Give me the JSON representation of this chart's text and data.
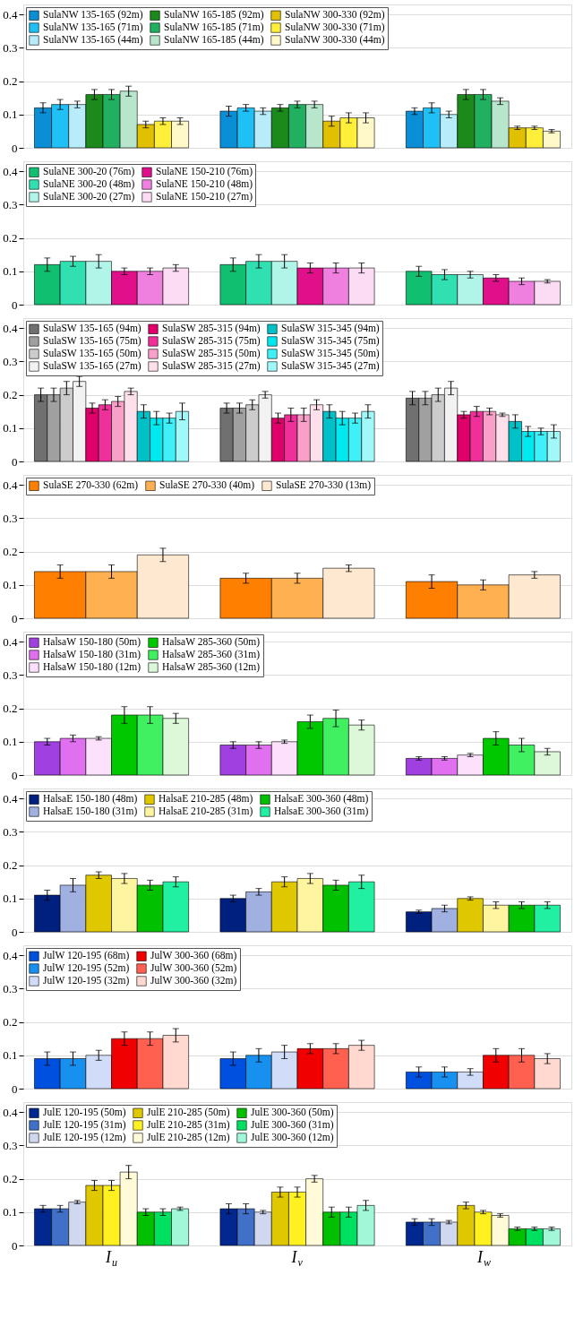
{
  "chart_data": [
    {
      "type": "bar",
      "categories": [
        null,
        null,
        null
      ],
      "ylim": [
        0,
        0.43
      ],
      "yticks": [
        0,
        0.1,
        0.2,
        0.3,
        0.4
      ],
      "grid": "y",
      "legend": "top left",
      "tick_labels": "y",
      "series": [
        {
          "name": "SulaNW 135-165 (92m)",
          "color": "#0a8fd6",
          "values": [
            0.12,
            0.11,
            0.11
          ],
          "errors": [
            0.015,
            0.015,
            0.01
          ]
        },
        {
          "name": "SulaNW 135-165 (71m)",
          "color": "#1fc0f5",
          "values": [
            0.13,
            0.12,
            0.12
          ],
          "errors": [
            0.015,
            0.01,
            0.015
          ]
        },
        {
          "name": "SulaNW 135-165 (44m)",
          "color": "#b8ecfa",
          "values": [
            0.13,
            0.11,
            0.1
          ],
          "errors": [
            0.01,
            0.01,
            0.01
          ]
        },
        {
          "name": "SulaNW 165-185 (92m)",
          "color": "#1b8a1b",
          "values": [
            0.16,
            0.12,
            0.16
          ],
          "errors": [
            0.015,
            0.01,
            0.015
          ]
        },
        {
          "name": "SulaNW 165-185 (71m)",
          "color": "#21b060",
          "values": [
            0.16,
            0.13,
            0.16
          ],
          "errors": [
            0.015,
            0.01,
            0.015
          ]
        },
        {
          "name": "SulaNW 165-185 (44m)",
          "color": "#b7e6cc",
          "values": [
            0.17,
            0.13,
            0.14
          ],
          "errors": [
            0.015,
            0.01,
            0.01
          ]
        },
        {
          "name": "SulaNW 300-330 (92m)",
          "color": "#e0c000",
          "values": [
            0.07,
            0.08,
            0.06
          ],
          "errors": [
            0.01,
            0.015,
            0.005
          ]
        },
        {
          "name": "SulaNW 300-330 (71m)",
          "color": "#ffef3a",
          "values": [
            0.08,
            0.09,
            0.06
          ],
          "errors": [
            0.01,
            0.015,
            0.005
          ]
        },
        {
          "name": "SulaNW 300-330 (44m)",
          "color": "#fff8c8",
          "values": [
            0.08,
            0.09,
            0.05
          ],
          "errors": [
            0.01,
            0.015,
            0.005
          ]
        }
      ]
    },
    {
      "type": "bar",
      "categories": [
        null,
        null,
        null
      ],
      "ylim": [
        0,
        0.43
      ],
      "yticks": [
        0,
        0.1,
        0.2,
        0.3,
        0.4
      ],
      "grid": "y",
      "legend": "top left",
      "tick_labels": "y",
      "series": [
        {
          "name": "SulaNE 300-20 (76m)",
          "color": "#10c070",
          "values": [
            0.12,
            0.12,
            0.1
          ],
          "errors": [
            0.02,
            0.02,
            0.015
          ]
        },
        {
          "name": "SulaNE 300-20 (48m)",
          "color": "#30e0b0",
          "values": [
            0.13,
            0.13,
            0.09
          ],
          "errors": [
            0.015,
            0.02,
            0.015
          ]
        },
        {
          "name": "SulaNE 300-20 (27m)",
          "color": "#b0f5e8",
          "values": [
            0.13,
            0.13,
            0.09
          ],
          "errors": [
            0.02,
            0.02,
            0.01
          ]
        },
        {
          "name": "SulaNE 150-210 (76m)",
          "color": "#e0108a",
          "values": [
            0.1,
            0.11,
            0.08
          ],
          "errors": [
            0.01,
            0.015,
            0.01
          ]
        },
        {
          "name": "SulaNE 150-210 (48m)",
          "color": "#f080e0",
          "values": [
            0.1,
            0.11,
            0.07
          ],
          "errors": [
            0.01,
            0.015,
            0.01
          ]
        },
        {
          "name": "SulaNE 150-210 (27m)",
          "color": "#fcdcf5",
          "values": [
            0.11,
            0.11,
            0.07
          ],
          "errors": [
            0.01,
            0.015,
            0.005
          ]
        }
      ]
    },
    {
      "type": "bar",
      "categories": [
        null,
        null,
        null
      ],
      "ylim": [
        0,
        0.43
      ],
      "yticks": [
        0,
        0.1,
        0.2,
        0.3,
        0.4
      ],
      "grid": "y",
      "legend": "top left",
      "tick_labels": "y",
      "series": [
        {
          "name": "SulaSW 135-165 (94m)",
          "color": "#707070",
          "values": [
            0.2,
            0.16,
            0.19
          ],
          "errors": [
            0.02,
            0.015,
            0.02
          ]
        },
        {
          "name": "SulaSW 135-165 (75m)",
          "color": "#a0a0a0",
          "values": [
            0.2,
            0.16,
            0.19
          ],
          "errors": [
            0.02,
            0.015,
            0.02
          ]
        },
        {
          "name": "SulaSW 135-165 (50m)",
          "color": "#cccccc",
          "values": [
            0.22,
            0.17,
            0.2
          ],
          "errors": [
            0.02,
            0.015,
            0.02
          ]
        },
        {
          "name": "SulaSW 135-165 (27m)",
          "color": "#f2f2f2",
          "values": [
            0.24,
            0.2,
            0.22
          ],
          "errors": [
            0.015,
            0.01,
            0.02
          ]
        },
        {
          "name": "SulaSW 285-315 (94m)",
          "color": "#e0006a",
          "values": [
            0.16,
            0.13,
            0.14
          ],
          "errors": [
            0.015,
            0.015,
            0.01
          ]
        },
        {
          "name": "SulaSW 285-315 (75m)",
          "color": "#f0309a",
          "values": [
            0.17,
            0.14,
            0.15
          ],
          "errors": [
            0.015,
            0.02,
            0.015
          ]
        },
        {
          "name": "SulaSW 285-315 (50m)",
          "color": "#f8a0c8",
          "values": [
            0.18,
            0.14,
            0.15
          ],
          "errors": [
            0.015,
            0.02,
            0.01
          ]
        },
        {
          "name": "SulaSW 285-315 (27m)",
          "color": "#fde0ec",
          "values": [
            0.21,
            0.17,
            0.14
          ],
          "errors": [
            0.01,
            0.015,
            0.005
          ]
        },
        {
          "name": "SulaSW 315-345 (94m)",
          "color": "#00c0c8",
          "values": [
            0.15,
            0.15,
            0.12
          ],
          "errors": [
            0.02,
            0.02,
            0.02
          ]
        },
        {
          "name": "SulaSW 315-345 (75m)",
          "color": "#00e8f0",
          "values": [
            0.13,
            0.13,
            0.09
          ],
          "errors": [
            0.02,
            0.02,
            0.015
          ]
        },
        {
          "name": "SulaSW 315-345 (50m)",
          "color": "#40f0f8",
          "values": [
            0.13,
            0.13,
            0.09
          ],
          "errors": [
            0.015,
            0.015,
            0.01
          ]
        },
        {
          "name": "SulaSW 315-345 (27m)",
          "color": "#a0f8f8",
          "values": [
            0.15,
            0.15,
            0.09
          ],
          "errors": [
            0.025,
            0.02,
            0.02
          ]
        }
      ]
    },
    {
      "type": "bar",
      "categories": [
        null,
        null,
        null
      ],
      "ylim": [
        0,
        0.43
      ],
      "yticks": [
        0,
        0.1,
        0.2,
        0.3,
        0.4
      ],
      "grid": "y",
      "legend": "top left",
      "tick_labels": "y",
      "series": [
        {
          "name": "SulaSE 270-330 (62m)",
          "color": "#ff7f00",
          "values": [
            0.14,
            0.12,
            0.11
          ],
          "errors": [
            0.02,
            0.015,
            0.02
          ]
        },
        {
          "name": "SulaSE 270-330 (40m)",
          "color": "#ffb050",
          "values": [
            0.14,
            0.12,
            0.1
          ],
          "errors": [
            0.02,
            0.015,
            0.015
          ]
        },
        {
          "name": "SulaSE 270-330 (13m)",
          "color": "#ffe8d0",
          "values": [
            0.19,
            0.15,
            0.13
          ],
          "errors": [
            0.02,
            0.01,
            0.01
          ]
        }
      ]
    },
    {
      "type": "bar",
      "categories": [
        null,
        null,
        null
      ],
      "ylim": [
        0,
        0.43
      ],
      "yticks": [
        0,
        0.1,
        0.2,
        0.3,
        0.4
      ],
      "grid": "y",
      "legend": "top left",
      "tick_labels": "y",
      "series": [
        {
          "name": "HalsaW 150-180 (50m)",
          "color": "#a040e0",
          "values": [
            0.1,
            0.09,
            0.05
          ],
          "errors": [
            0.01,
            0.01,
            0.005
          ]
        },
        {
          "name": "HalsaW 150-180 (31m)",
          "color": "#e070f0",
          "values": [
            0.11,
            0.09,
            0.05
          ],
          "errors": [
            0.01,
            0.01,
            0.005
          ]
        },
        {
          "name": "HalsaW 150-180 (12m)",
          "color": "#fce0fc",
          "values": [
            0.11,
            0.1,
            0.06
          ],
          "errors": [
            0.005,
            0.005,
            0.005
          ]
        },
        {
          "name": "HalsaW 285-360 (50m)",
          "color": "#00c800",
          "values": [
            0.18,
            0.16,
            0.11
          ],
          "errors": [
            0.025,
            0.02,
            0.02
          ]
        },
        {
          "name": "HalsaW 285-360 (31m)",
          "color": "#40f060",
          "values": [
            0.18,
            0.17,
            0.09
          ],
          "errors": [
            0.025,
            0.025,
            0.02
          ]
        },
        {
          "name": "HalsaW 285-360 (12m)",
          "color": "#dcf8d8",
          "values": [
            0.17,
            0.15,
            0.07
          ],
          "errors": [
            0.015,
            0.015,
            0.01
          ]
        }
      ]
    },
    {
      "type": "bar",
      "categories": [
        null,
        null,
        null
      ],
      "ylim": [
        0,
        0.43
      ],
      "yticks": [
        0,
        0.1,
        0.2,
        0.3,
        0.4
      ],
      "grid": "y",
      "legend": "top left",
      "tick_labels": "y",
      "series": [
        {
          "name": "HalsaE 150-180 (48m)",
          "color": "#002080",
          "values": [
            0.11,
            0.1,
            0.06
          ],
          "errors": [
            0.015,
            0.01,
            0.005
          ]
        },
        {
          "name": "HalsaE 150-180 (31m)",
          "color": "#a0b0e0",
          "values": [
            0.14,
            0.12,
            0.07
          ],
          "errors": [
            0.02,
            0.01,
            0.01
          ]
        },
        {
          "name": "HalsaE 210-285 (48m)",
          "color": "#e0c800",
          "values": [
            0.17,
            0.15,
            0.1
          ],
          "errors": [
            0.01,
            0.015,
            0.005
          ]
        },
        {
          "name": "HalsaE 210-285 (31m)",
          "color": "#fff4a0",
          "values": [
            0.16,
            0.16,
            0.08
          ],
          "errors": [
            0.015,
            0.015,
            0.01
          ]
        },
        {
          "name": "HalsaE 300-360 (48m)",
          "color": "#00c000",
          "values": [
            0.14,
            0.14,
            0.08
          ],
          "errors": [
            0.015,
            0.015,
            0.01
          ]
        },
        {
          "name": "HalsaE 300-360 (31m)",
          "color": "#20f0a0",
          "values": [
            0.15,
            0.15,
            0.08
          ],
          "errors": [
            0.015,
            0.02,
            0.01
          ]
        }
      ]
    },
    {
      "type": "bar",
      "categories": [
        null,
        null,
        null
      ],
      "ylim": [
        0,
        0.43
      ],
      "yticks": [
        0,
        0.1,
        0.2,
        0.3,
        0.4
      ],
      "grid": "y",
      "legend": "top left",
      "tick_labels": "y",
      "series": [
        {
          "name": "JulW 120-195 (68m)",
          "color": "#0050e0",
          "values": [
            0.09,
            0.09,
            0.05
          ],
          "errors": [
            0.02,
            0.02,
            0.015
          ]
        },
        {
          "name": "JulW 120-195 (52m)",
          "color": "#1890f0",
          "values": [
            0.09,
            0.1,
            0.05
          ],
          "errors": [
            0.02,
            0.02,
            0.015
          ]
        },
        {
          "name": "JulW 120-195 (32m)",
          "color": "#d0dcf8",
          "values": [
            0.1,
            0.11,
            0.05
          ],
          "errors": [
            0.015,
            0.02,
            0.01
          ]
        },
        {
          "name": "JulW 300-360 (68m)",
          "color": "#f00000",
          "values": [
            0.15,
            0.12,
            0.1
          ],
          "errors": [
            0.02,
            0.015,
            0.02
          ]
        },
        {
          "name": "JulW 300-360 (52m)",
          "color": "#ff6050",
          "values": [
            0.15,
            0.12,
            0.1
          ],
          "errors": [
            0.02,
            0.015,
            0.02
          ]
        },
        {
          "name": "JulW 300-360 (32m)",
          "color": "#ffd8d0",
          "values": [
            0.16,
            0.13,
            0.09
          ],
          "errors": [
            0.02,
            0.015,
            0.015
          ]
        }
      ]
    },
    {
      "type": "bar",
      "categories": [
        "I$_{u}$",
        "I$_{v}$",
        "I$_{w}$"
      ],
      "ylim": [
        0,
        0.43
      ],
      "yticks": [
        0,
        0.1,
        0.2,
        0.3,
        0.4
      ],
      "grid": "y",
      "legend": "top left",
      "series": [
        {
          "name": "JulE 120-195 (50m)",
          "color": "#002890",
          "values": [
            0.11,
            0.11,
            0.07
          ],
          "errors": [
            0.01,
            0.015,
            0.01
          ]
        },
        {
          "name": "JulE 120-195 (31m)",
          "color": "#4070c8",
          "values": [
            0.11,
            0.11,
            0.07
          ],
          "errors": [
            0.01,
            0.015,
            0.01
          ]
        },
        {
          "name": "JulE 120-195 (12m)",
          "color": "#d0d8f0",
          "values": [
            0.13,
            0.1,
            0.07
          ],
          "errors": [
            0.005,
            0.005,
            0.005
          ]
        },
        {
          "name": "JulE 210-285 (50m)",
          "color": "#e0c800",
          "values": [
            0.18,
            0.16,
            0.12
          ],
          "errors": [
            0.015,
            0.015,
            0.01
          ]
        },
        {
          "name": "JulE 210-285 (31m)",
          "color": "#fff020",
          "values": [
            0.18,
            0.16,
            0.1
          ],
          "errors": [
            0.015,
            0.015,
            0.005
          ]
        },
        {
          "name": "JulE 210-285 (12m)",
          "color": "#fffad8",
          "values": [
            0.22,
            0.2,
            0.09
          ],
          "errors": [
            0.02,
            0.01,
            0.005
          ]
        },
        {
          "name": "JulE 300-360 (50m)",
          "color": "#00c000",
          "values": [
            0.1,
            0.1,
            0.05
          ],
          "errors": [
            0.01,
            0.015,
            0.005
          ]
        },
        {
          "name": "JulE 300-360 (31m)",
          "color": "#00e060",
          "values": [
            0.1,
            0.1,
            0.05
          ],
          "errors": [
            0.01,
            0.015,
            0.005
          ]
        },
        {
          "name": "JulE 300-360 (12m)",
          "color": "#a0f8d8",
          "values": [
            0.11,
            0.12,
            0.05
          ],
          "errors": [
            0.005,
            0.015,
            0.005
          ]
        }
      ]
    }
  ]
}
